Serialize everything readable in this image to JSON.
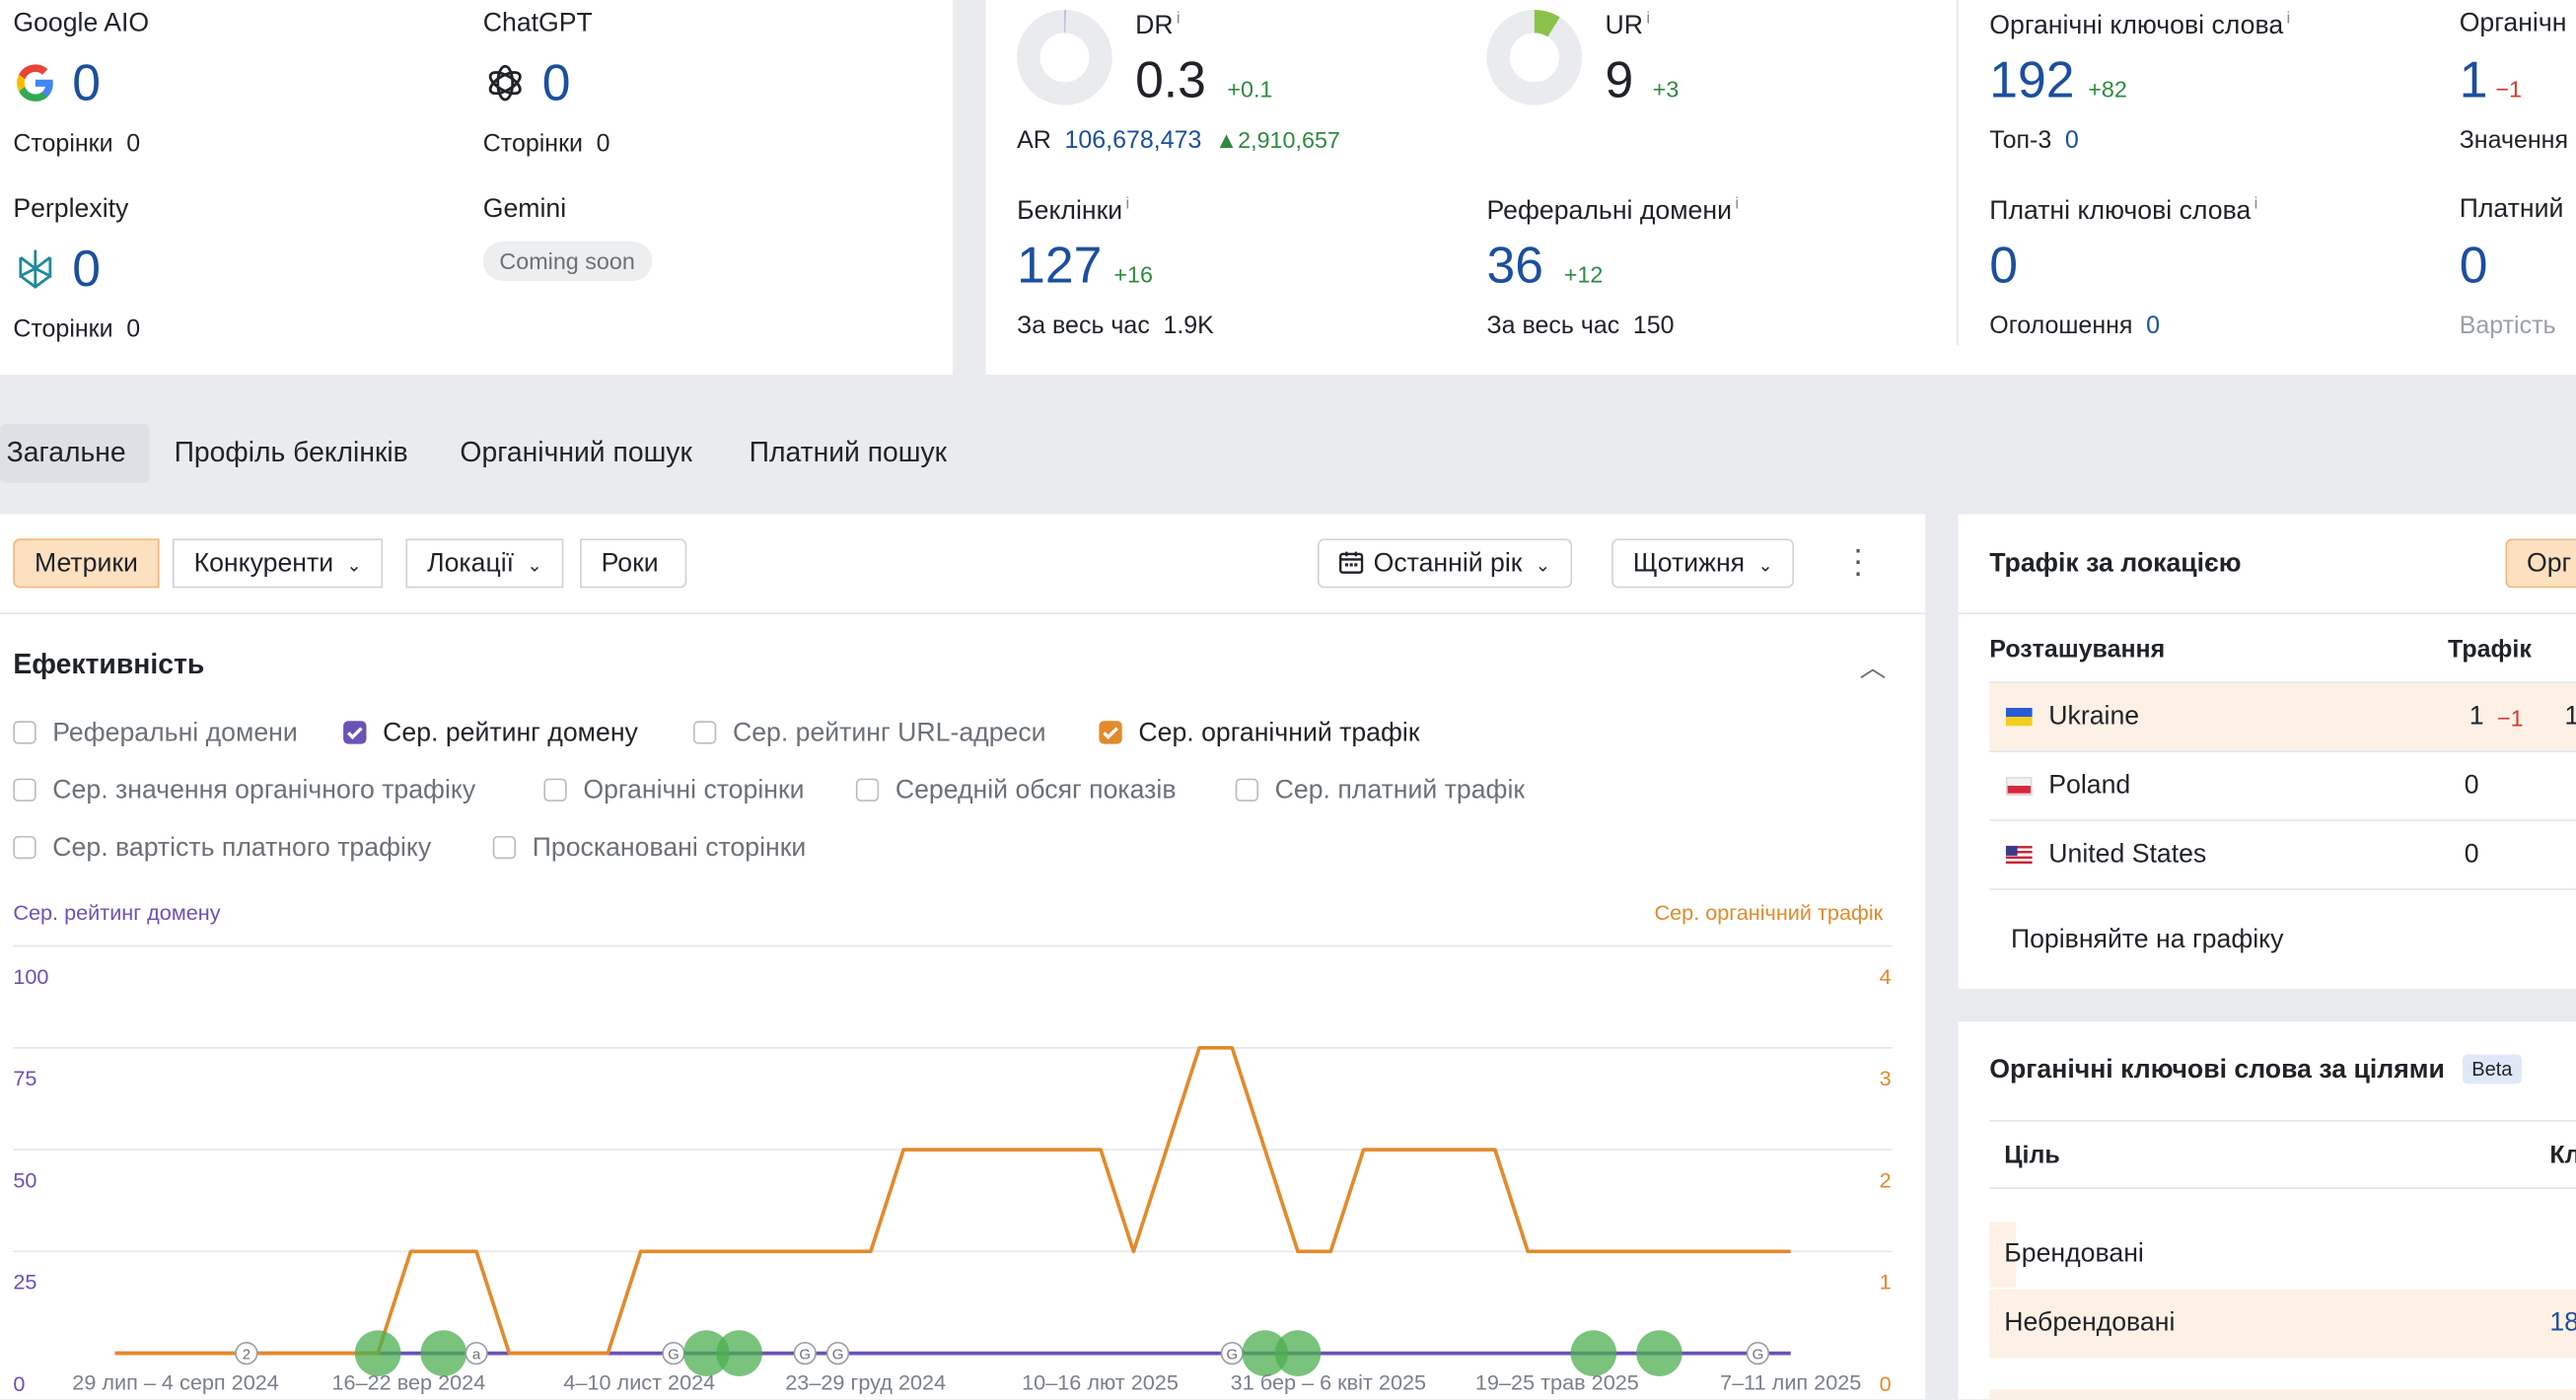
{
  "ai": {
    "google": {
      "name": "Google AIO",
      "value": "0",
      "pages_label": "Сторінки",
      "pages": "0"
    },
    "chatgpt": {
      "name": "ChatGPT",
      "value": "0",
      "pages_label": "Сторінки",
      "pages": "0"
    },
    "perplexity": {
      "name": "Perplexity",
      "value": "0",
      "pages_label": "Сторінки",
      "pages": "0"
    },
    "gemini": {
      "name": "Gemini",
      "badge": "Coming soon"
    }
  },
  "metrics": {
    "dr": {
      "label": "DR",
      "info": "i",
      "value": "0.3",
      "delta": "+0.1",
      "level": 0.003
    },
    "ar": {
      "label": "AR",
      "value": "106,678,473",
      "delta": "2,910,657"
    },
    "ur": {
      "label": "UR",
      "info": "i",
      "value": "9",
      "delta": "+3",
      "level": 0.09
    },
    "backlinks": {
      "label": "Беклінки",
      "info": "i",
      "value": "127",
      "delta": "+16",
      "all_label": "За весь час",
      "all_value": "1.9K"
    },
    "ref_domains": {
      "label": "Реферальні домени",
      "info": "i",
      "value": "36",
      "delta": "+12",
      "all_label": "За весь час",
      "all_value": "150"
    },
    "organic_kw": {
      "label": "Органічні ключові слова",
      "info": "i",
      "value": "192",
      "delta": "+82",
      "top_label": "Топ-3",
      "top_value": "0"
    },
    "organic_traffic": {
      "label": "Органічн",
      "value": "1",
      "delta": "−1",
      "sub_label": "Значення"
    },
    "paid_kw": {
      "label": "Платні ключові слова",
      "info": "i",
      "value": "0",
      "ads_label": "Оголошення",
      "ads_value": "0"
    },
    "paid_traffic": {
      "label": "Платний",
      "value": "0",
      "sub_label": "Вартість"
    }
  },
  "tabs": [
    "Загальне",
    "Профіль беклінків",
    "Органічний пошук",
    "Платний пошук"
  ],
  "toolbar": {
    "metrics": "Метрики",
    "competitors": "Конкуренти",
    "locations": "Локації",
    "years": "Роки",
    "period": "Останній рік",
    "interval": "Щотижня"
  },
  "performance": {
    "title": "Ефективність",
    "checkboxes": [
      {
        "label": "Реферальні домени",
        "checked": false
      },
      {
        "label": "Сер. рейтинг домену",
        "checked": true,
        "color": "#6a52b8"
      },
      {
        "label": "Сер. рейтинг URL-адреси",
        "checked": false
      },
      {
        "label": "Сер. органічний трафік",
        "checked": true,
        "color": "#e38a2a"
      },
      {
        "label": "Сер. значення органічного трафіку",
        "checked": false
      },
      {
        "label": "Органічні сторінки",
        "checked": false
      },
      {
        "label": "Середній обсяг показів",
        "checked": false
      },
      {
        "label": "Сер. платний трафік",
        "checked": false
      },
      {
        "label": "Сер. вартість платного трафіку",
        "checked": false
      },
      {
        "label": "Проскановані сторінки",
        "checked": false
      }
    ]
  },
  "chart_data": {
    "type": "line",
    "left_axis_label": "Сер. рейтинг домену",
    "right_axis_label": "Сер. органічний трафік",
    "left_ticks": [
      "0",
      "25",
      "50",
      "75",
      "100"
    ],
    "right_ticks": [
      "0",
      "1",
      "2",
      "3",
      "4"
    ],
    "left_ylim": [
      0,
      100
    ],
    "right_ylim": [
      0,
      4
    ],
    "x_ticks": [
      "29 лип – 4 серп 2024",
      "16–22 вер 2024",
      "4–10 лист 2024",
      "23–29 груд 2024",
      "10–16 лют 2025",
      "31 бер – 6 квіт 2025",
      "19–25 трав 2025",
      "7–11 лип 2025"
    ],
    "grid": true,
    "series": [
      {
        "name": "Сер. рейтинг домену",
        "color": "#6a52b8",
        "axis": "left",
        "values": [
          0,
          0,
          0,
          0,
          0,
          0,
          0,
          0,
          0,
          0,
          0,
          0,
          0,
          0,
          0,
          0,
          0,
          0,
          0,
          0,
          0,
          0,
          0,
          0,
          0,
          0,
          0,
          0,
          0,
          0,
          0,
          0,
          0,
          0,
          0,
          0,
          0,
          0,
          0,
          0,
          0,
          0,
          0,
          0,
          0,
          0,
          0,
          0,
          0,
          0,
          0,
          0
        ]
      },
      {
        "name": "Сер. органічний трафік",
        "color": "#e38a2a",
        "axis": "right",
        "values": [
          0,
          0,
          0,
          0,
          0,
          0,
          0,
          0,
          0,
          1,
          1,
          1,
          0,
          0,
          0,
          0,
          1,
          1,
          1,
          1,
          1,
          1,
          1,
          1,
          2,
          2,
          2,
          2,
          2,
          2,
          2,
          1,
          2,
          3,
          3,
          2,
          1,
          1,
          2,
          2,
          2,
          2,
          2,
          1,
          1,
          1,
          1,
          1,
          1,
          1,
          1,
          1
        ]
      }
    ],
    "annotations": [
      {
        "week": 4,
        "label": "2",
        "kind": "marker"
      },
      {
        "week": 8,
        "kind": "green"
      },
      {
        "week": 10,
        "kind": "green"
      },
      {
        "week": 11,
        "label": "a",
        "kind": "marker"
      },
      {
        "week": 17,
        "label": "G",
        "kind": "marker"
      },
      {
        "week": 18,
        "kind": "green"
      },
      {
        "week": 19,
        "kind": "green"
      },
      {
        "week": 21,
        "label": "G",
        "kind": "marker"
      },
      {
        "week": 22,
        "label": "G",
        "kind": "marker"
      },
      {
        "week": 34,
        "label": "G",
        "kind": "marker"
      },
      {
        "week": 35,
        "kind": "green"
      },
      {
        "week": 36,
        "kind": "green"
      },
      {
        "week": 45,
        "kind": "green"
      },
      {
        "week": 47,
        "kind": "green"
      },
      {
        "week": 50,
        "label": "G",
        "kind": "marker"
      }
    ]
  },
  "location": {
    "title": "Трафік за локацією",
    "button": "Орг",
    "col_location": "Розташування",
    "col_traffic": "Трафік",
    "rows": [
      {
        "country": "Ukraine",
        "traffic": "1",
        "delta": "−1",
        "extra": "1"
      },
      {
        "country": "Poland",
        "traffic": "0"
      },
      {
        "country": "United States",
        "traffic": "0"
      }
    ],
    "compare": "Порівняйте на графіку"
  },
  "intent": {
    "title": "Органічні ключові слова за цілями",
    "badge": "Beta",
    "col_goal": "Ціль",
    "col_kw": "Кл",
    "rows": [
      {
        "goal": "Брендовані",
        "value": ""
      },
      {
        "goal": "Небрендовані",
        "value": "18"
      }
    ]
  }
}
